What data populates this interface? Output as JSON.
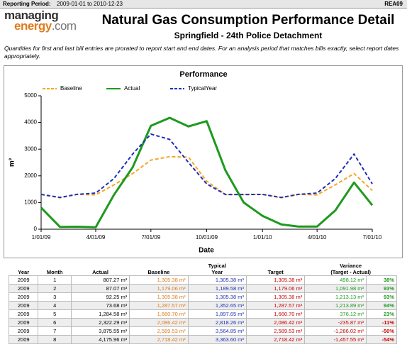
{
  "header": {
    "label": "Reporting Period:",
    "period": "2009-01-01 to 2010-12-23",
    "code": "REA09"
  },
  "logo": {
    "word1": "managing",
    "word2": "energy",
    "suffix": ".com"
  },
  "title": "Natural Gas Consumption Performance Detail",
  "subtitle": "Springfield - 24th Police Detachment",
  "note": "Quantities for first and last bill entries are prorated to report start and end dates. For an analysis period that matches bills exactly, select report dates appropriately.",
  "chart_data": {
    "type": "line",
    "title": "Performance",
    "x_label": "Date",
    "y_label": "m³",
    "x": [
      "2009-01-01",
      "2009-02-01",
      "2009-03-01",
      "2009-04-01",
      "2009-05-01",
      "2009-06-01",
      "2009-07-01",
      "2009-08-01",
      "2009-09-01",
      "2009-10-01",
      "2009-11-01",
      "2009-12-01",
      "2010-01-01",
      "2010-02-01",
      "2010-03-01",
      "2010-04-01",
      "2010-05-01",
      "2010-06-01",
      "2010-07-01"
    ],
    "xlim": [
      "2009-01-01",
      "2010-07-01"
    ],
    "xticks": [
      {
        "value": "2009-01-01",
        "label": "1/01/09"
      },
      {
        "value": "2009-04-01",
        "label": "4/01/09"
      },
      {
        "value": "2009-07-01",
        "label": "7/01/09"
      },
      {
        "value": "2009-10-01",
        "label": "10/01/09"
      },
      {
        "value": "2010-01-01",
        "label": "1/01/10"
      },
      {
        "value": "2010-04-01",
        "label": "4/01/10"
      },
      {
        "value": "2010-07-01",
        "label": "7/01/10"
      }
    ],
    "ylim": [
      0,
      5000
    ],
    "yticks": [
      0,
      1000,
      2000,
      3000,
      4000,
      5000
    ],
    "series": [
      {
        "name": "Baseline",
        "color": "#f5a623",
        "style": "dashed",
        "values": [
          1305,
          1179,
          1305,
          1288,
          1661,
          2086,
          2590,
          2718,
          2700,
          1800,
          1300,
          1300,
          1305,
          1179,
          1305,
          1288,
          1661,
          2086,
          1450
        ]
      },
      {
        "name": "Actual",
        "color": "#1e9a1e",
        "style": "solid",
        "values": [
          807,
          87,
          92,
          74,
          1285,
          2322,
          3876,
          4176,
          3850,
          4050,
          2200,
          1000,
          500,
          180,
          100,
          100,
          700,
          1750,
          900
        ]
      },
      {
        "name": "TypicalYear",
        "color": "#1f2fb5",
        "style": "dashed",
        "values": [
          1305,
          1190,
          1305,
          1353,
          1898,
          2818,
          3565,
          3364,
          2500,
          1700,
          1300,
          1300,
          1305,
          1190,
          1305,
          1353,
          1898,
          2818,
          1700
        ]
      }
    ]
  },
  "table": {
    "header": [
      "Year",
      "Month",
      "Actual",
      "Baseline",
      "Typical\nYear",
      "Target",
      "Variance\n(Target - Actual)"
    ],
    "rows": [
      [
        "2009",
        "1",
        "807.27 m³",
        "1,305.38 m³",
        "1,305.38 m³",
        "1,305.38 m³",
        "498.12 m³",
        "38%"
      ],
      [
        "2009",
        "2",
        "87.07 m³",
        "1,179.06 m³",
        "1,189.58 m³",
        "1,179.06 m³",
        "1,091.98 m³",
        "93%"
      ],
      [
        "2009",
        "3",
        "92.25 m³",
        "1,305.38 m³",
        "1,305.38 m³",
        "1,305.38 m³",
        "1,213.13 m³",
        "93%"
      ],
      [
        "2009",
        "4",
        "73.68 m³",
        "1,287.57 m³",
        "1,352.65 m³",
        "1,287.57 m³",
        "1,213.89 m³",
        "94%"
      ],
      [
        "2009",
        "5",
        "1,284.58 m³",
        "1,660.70 m³",
        "1,897.65 m³",
        "1,660.70 m³",
        "376.12 m³",
        "23%"
      ],
      [
        "2009",
        "6",
        "2,322.29 m³",
        "2,086.42 m³",
        "2,818.26 m³",
        "2,086.42 m³",
        "-235.87 m³",
        "-11%"
      ],
      [
        "2009",
        "7",
        "3,875.55 m³",
        "2,589.53 m³",
        "3,564.85 m³",
        "2,589.53 m³",
        "-1,286.02 m³",
        "-50%"
      ],
      [
        "2009",
        "8",
        "4,175.96 m³",
        "2,718.42 m³",
        "3,363.60 m³",
        "2,718.42 m³",
        "-1,457.55 m³",
        "-54%"
      ]
    ]
  }
}
